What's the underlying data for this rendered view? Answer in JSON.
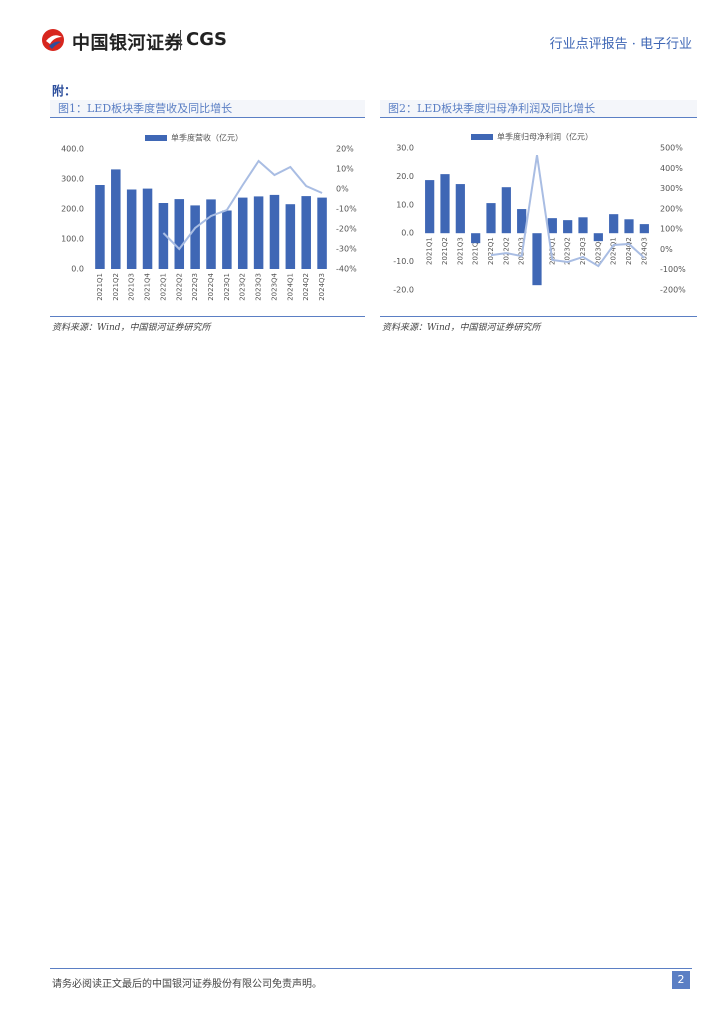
{
  "header": {
    "brand": "中国银河证券",
    "brand_en": "CGS",
    "report_type": "行业点评报告 · 电子行业"
  },
  "section_label": "附：",
  "chart_data": [
    {
      "type": "combo",
      "title": "图1：LED板块季度营收及同比增长",
      "source": "资料来源：Wind，中国银河证券研究所",
      "categories": [
        "2021Q1",
        "2021Q2",
        "2021Q3",
        "2021Q4",
        "2022Q1",
        "2022Q2",
        "2022Q3",
        "2022Q4",
        "2023Q1",
        "2023Q2",
        "2023Q3",
        "2023Q4",
        "2024Q1",
        "2024Q2",
        "2024Q3"
      ],
      "series": [
        {
          "name": "单季度营收（亿元）",
          "type": "bar",
          "color": "#3f67b5",
          "values": [
            280,
            332,
            265,
            268,
            220,
            233,
            212,
            232,
            195,
            238,
            242,
            247,
            216,
            243,
            238
          ]
        },
        {
          "type": "line",
          "axis": "y2",
          "color": "#a9bde3",
          "values": [
            null,
            null,
            null,
            null,
            -22,
            -30,
            -19.5,
            -13.5,
            -10.5,
            2,
            14,
            7,
            11,
            1.5,
            -2
          ]
        }
      ],
      "ylim": [
        0,
        400
      ],
      "yticks": [
        {
          "value": 0,
          "label": "0.0"
        },
        {
          "value": 100,
          "label": "100.0"
        },
        {
          "value": 200,
          "label": "200.0"
        },
        {
          "value": 300,
          "label": "300.0"
        },
        {
          "value": 400,
          "label": "400.0"
        }
      ],
      "y2lim": [
        -40,
        20
      ],
      "y2ticks": [
        {
          "value": -40,
          "label": "-40%"
        },
        {
          "value": -30,
          "label": "-30%"
        },
        {
          "value": -20,
          "label": "-20%"
        },
        {
          "value": -10,
          "label": "-10%"
        },
        {
          "value": 0,
          "label": "0%"
        },
        {
          "value": 10,
          "label": "10%"
        },
        {
          "value": 20,
          "label": "20%"
        }
      ]
    },
    {
      "type": "combo",
      "title": "图2：LED板块季度归母净利润及同比增长",
      "source": "资料来源：Wind，中国银河证券研究所",
      "categories": [
        "2021Q1",
        "2021Q2",
        "2021Q3",
        "2021Q4",
        "2022Q1",
        "2022Q2",
        "2022Q3",
        "2022Q4",
        "2023Q1",
        "2023Q2",
        "2023Q3",
        "2023Q4",
        "2024Q1",
        "2024Q2",
        "2024Q3"
      ],
      "series": [
        {
          "name": "单季度归母净利润（亿元）",
          "type": "bar",
          "color": "#3f67b5",
          "values": [
            18.7,
            20.8,
            17.3,
            -3.5,
            10.6,
            16.2,
            8.5,
            -18.3,
            5.3,
            4.6,
            5.6,
            -2.8,
            6.7,
            4.9,
            3.2
          ]
        },
        {
          "type": "line",
          "axis": "y2",
          "color": "#a9bde3",
          "values": [
            null,
            null,
            null,
            null,
            -28,
            -18,
            -33,
            465,
            -52,
            -62,
            -37,
            -82,
            22,
            27,
            -42
          ]
        }
      ],
      "ylim": [
        -20,
        30
      ],
      "yticks": [
        {
          "value": -20,
          "label": "-20.0"
        },
        {
          "value": -10,
          "label": "-10.0"
        },
        {
          "value": 0,
          "label": "0.0"
        },
        {
          "value": 10,
          "label": "10.0"
        },
        {
          "value": 20,
          "label": "20.0"
        },
        {
          "value": 30,
          "label": "30.0"
        }
      ],
      "y2lim": [
        -200,
        500
      ],
      "y2ticks": [
        {
          "value": -200,
          "label": "-200%"
        },
        {
          "value": -100,
          "label": "-100%"
        },
        {
          "value": 0,
          "label": "0%"
        },
        {
          "value": 100,
          "label": "100%"
        },
        {
          "value": 200,
          "label": "200%"
        },
        {
          "value": 300,
          "label": "300%"
        },
        {
          "value": 400,
          "label": "400%"
        },
        {
          "value": 500,
          "label": "500%"
        }
      ]
    }
  ],
  "footer": {
    "disclaimer": "请务必阅读正文最后的中国银河证券股份有限公司免责声明。",
    "page": "2"
  }
}
